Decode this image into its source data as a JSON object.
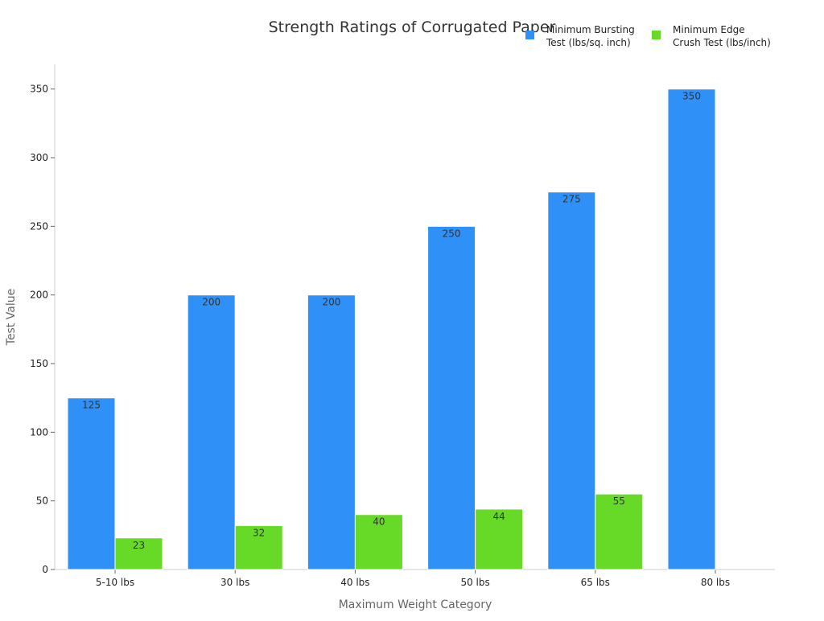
{
  "chart_data": {
    "type": "bar",
    "title": "Strength Ratings of Corrugated Paper",
    "xlabel": "Maximum Weight Category",
    "ylabel": "Test Value",
    "categories": [
      "5-10 lbs",
      "30 lbs",
      "40 lbs",
      "50 lbs",
      "65 lbs",
      "80 lbs"
    ],
    "series": [
      {
        "name": "Minimum Bursting Test (lbs/sq. inch)",
        "legend_lines": [
          "Minimum Bursting",
          "Test (lbs/sq. inch)"
        ],
        "color": "#2f91f8",
        "values": [
          125,
          200,
          200,
          250,
          275,
          350
        ]
      },
      {
        "name": "Minimum Edge Crush Test (lbs/inch)",
        "legend_lines": [
          "Minimum Edge",
          "Crush Test (lbs/inch)"
        ],
        "color": "#66da26",
        "values": [
          23,
          32,
          40,
          44,
          55,
          null
        ]
      }
    ],
    "ylim": [
      0,
      368
    ],
    "yticks": [
      0,
      50,
      100,
      150,
      200,
      250,
      300,
      350
    ],
    "grid": false,
    "legend_position": "top-right",
    "data_labels": true
  }
}
